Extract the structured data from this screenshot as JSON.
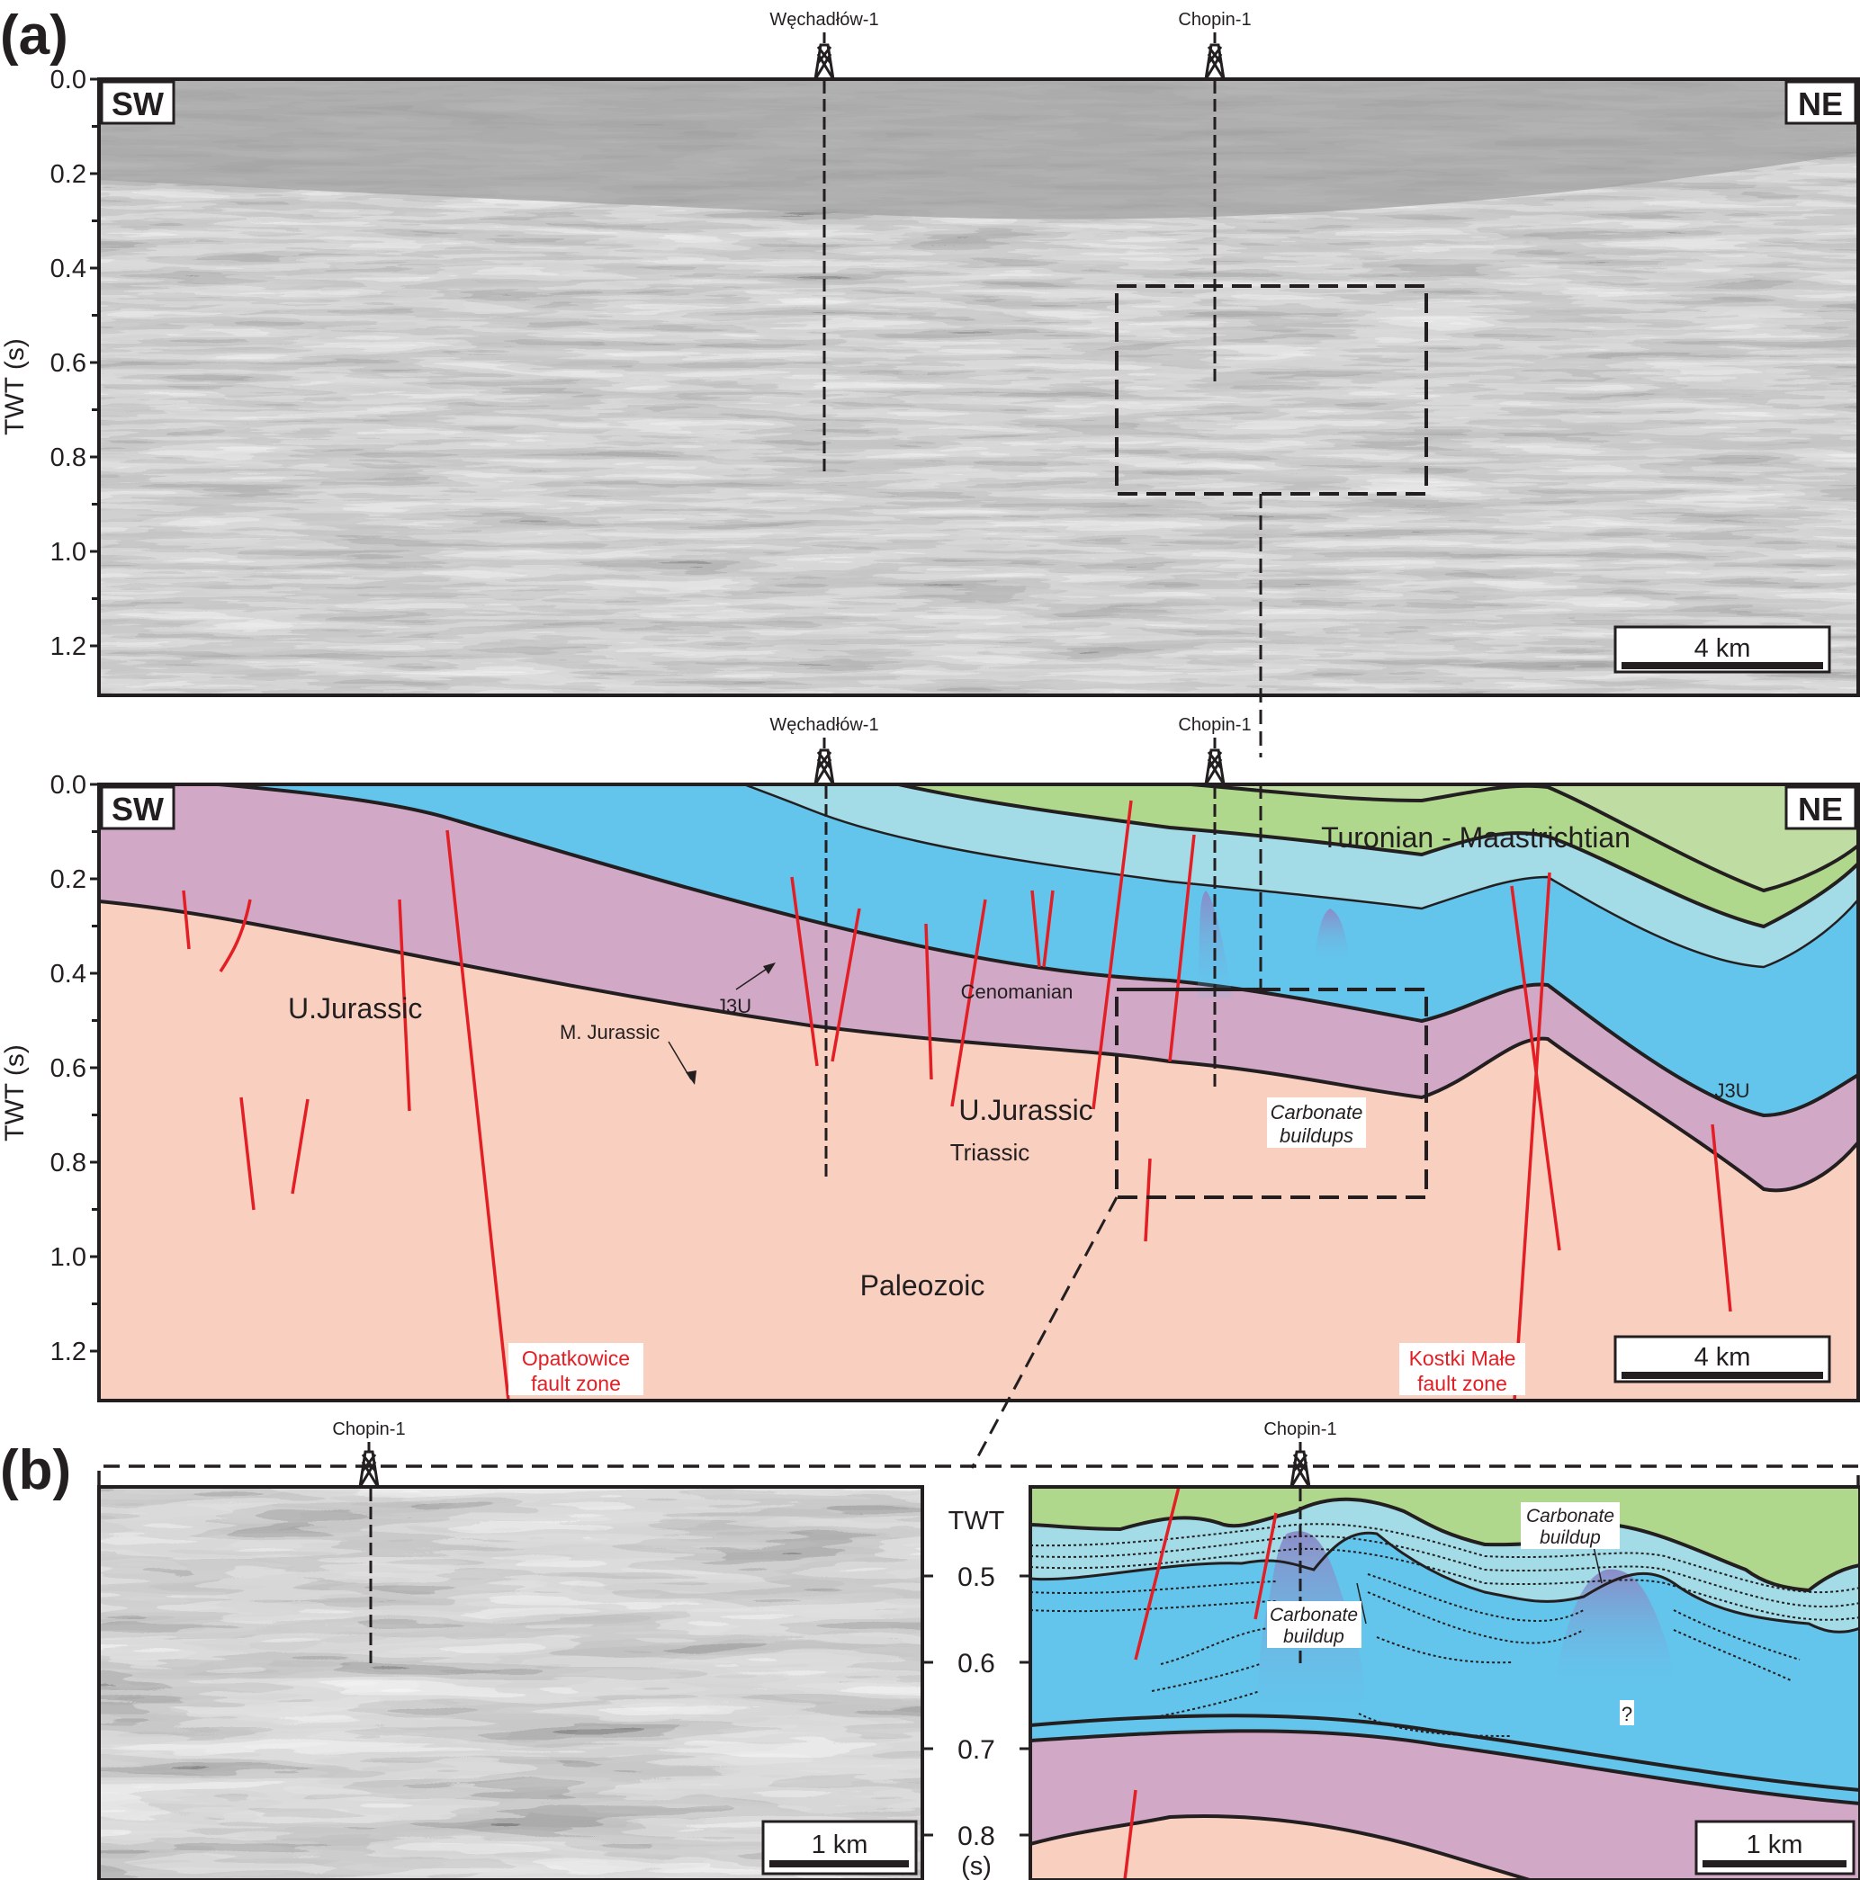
{
  "figure": {
    "panel_a_label": "(a)",
    "panel_b_label": "(b)",
    "y_axis_label": "TWT (s)",
    "y_ticks_main": [
      "0.0",
      "0.2",
      "0.4",
      "0.6",
      "0.8",
      "1.0",
      "1.2"
    ],
    "direction_left": "SW",
    "direction_right": "NE",
    "scale_main": "4 km",
    "scale_detail": "1 km"
  },
  "wells": {
    "well_1": "Węchadłów-1",
    "well_2": "Chopin-1"
  },
  "interpretation": {
    "units": {
      "turonian": "Turonian - Maastrichtian",
      "cenomanian": "Cenomanian",
      "u_jurassic_left": "U.Jurassic",
      "u_jurassic_center": "U.Jurassic",
      "m_jurassic": "M. Jurassic",
      "j3u_left": "J3U",
      "j3u_right": "J3U",
      "triassic": "Triassic",
      "paleozoic": "Paleozoic",
      "carbonate_buildups": [
        "Carbonate",
        "buildups"
      ]
    },
    "faults": {
      "opatkowice": [
        "Opatkowice",
        "fault zone"
      ],
      "kostki": [
        "Kostki Małe",
        "fault zone"
      ]
    },
    "colors": {
      "turonian": "#bfdca3",
      "cenomanian": "#b0d88c",
      "j3u": "#a3dbe6",
      "u_jurassic": "#63c5ec",
      "m_jurassic": "#4fb2e0",
      "triassic": "#d1a8c6",
      "paleozoic": "#f9d0c0",
      "fault": "#e31e24",
      "buildup": "#8a8cc8"
    }
  },
  "detail": {
    "axis_title": [
      "TWT",
      "(s)"
    ],
    "y_ticks": [
      "0.5",
      "0.6",
      "0.7",
      "0.8"
    ],
    "buildup_left": [
      "Carbonate",
      "buildup"
    ],
    "buildup_right": [
      "Carbonate",
      "buildup"
    ],
    "question": "?"
  }
}
